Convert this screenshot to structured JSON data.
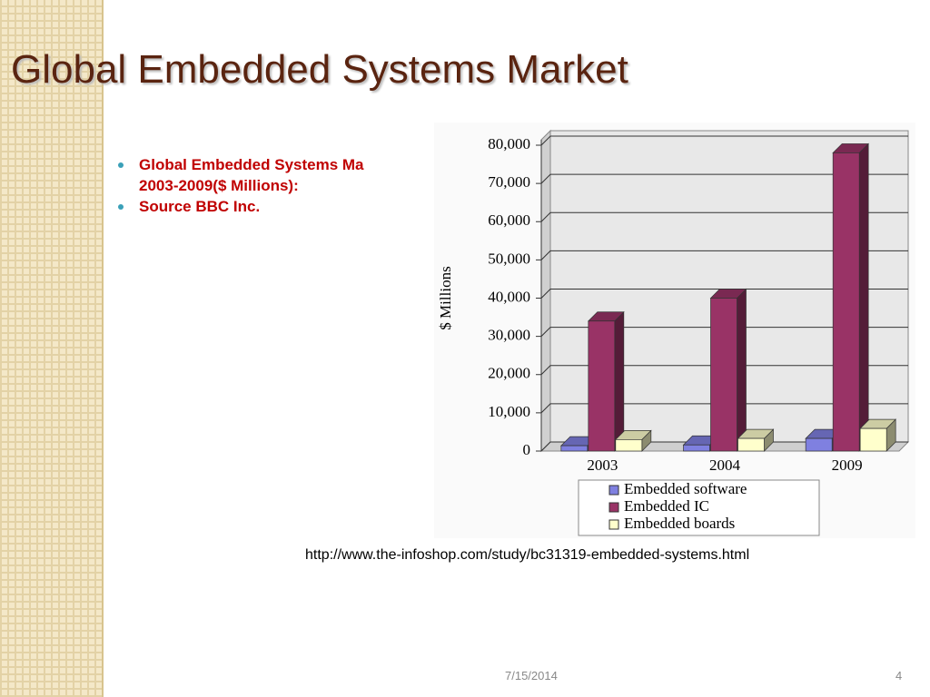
{
  "title": "Global Embedded Systems Market",
  "bullets": [
    {
      "lines": [
        "Global Embedded Systems Ma",
        "2003-2009($ Millions):"
      ]
    },
    {
      "lines": [
        "Source BBC Inc."
      ]
    }
  ],
  "link": "http://www.the-infoshop.com/study/bc31319-embedded-systems.html",
  "footer": {
    "date": "7/15/2014",
    "page": "4"
  },
  "chart_data": {
    "type": "bar",
    "y_label": "$ Millions",
    "categories": [
      "2003",
      "2004",
      "2009"
    ],
    "series": [
      {
        "name": "Embedded software",
        "color": "#7f80e0",
        "values": [
          1400,
          1600,
          3300
        ]
      },
      {
        "name": "Embedded IC",
        "color": "#993366",
        "values": [
          34000,
          40000,
          78000
        ]
      },
      {
        "name": "Embedded boards",
        "color": "#ffffcc",
        "values": [
          3000,
          3300,
          5900
        ]
      }
    ],
    "ylim": [
      0,
      80000
    ],
    "yticks": [
      0,
      {
        "value": 10000,
        "label": "10,000"
      },
      {
        "value": 20000,
        "label": "20,000"
      },
      {
        "value": 30000,
        "label": "30,000"
      },
      {
        "value": 40000,
        "label": "40,000"
      },
      {
        "value": 50000,
        "label": "50,000"
      },
      {
        "value": 60000,
        "label": "60,000"
      },
      {
        "value": 70000,
        "label": "70,000"
      },
      {
        "value": 80000,
        "label": "80,000"
      }
    ],
    "grid": true,
    "legend": "bottom"
  }
}
